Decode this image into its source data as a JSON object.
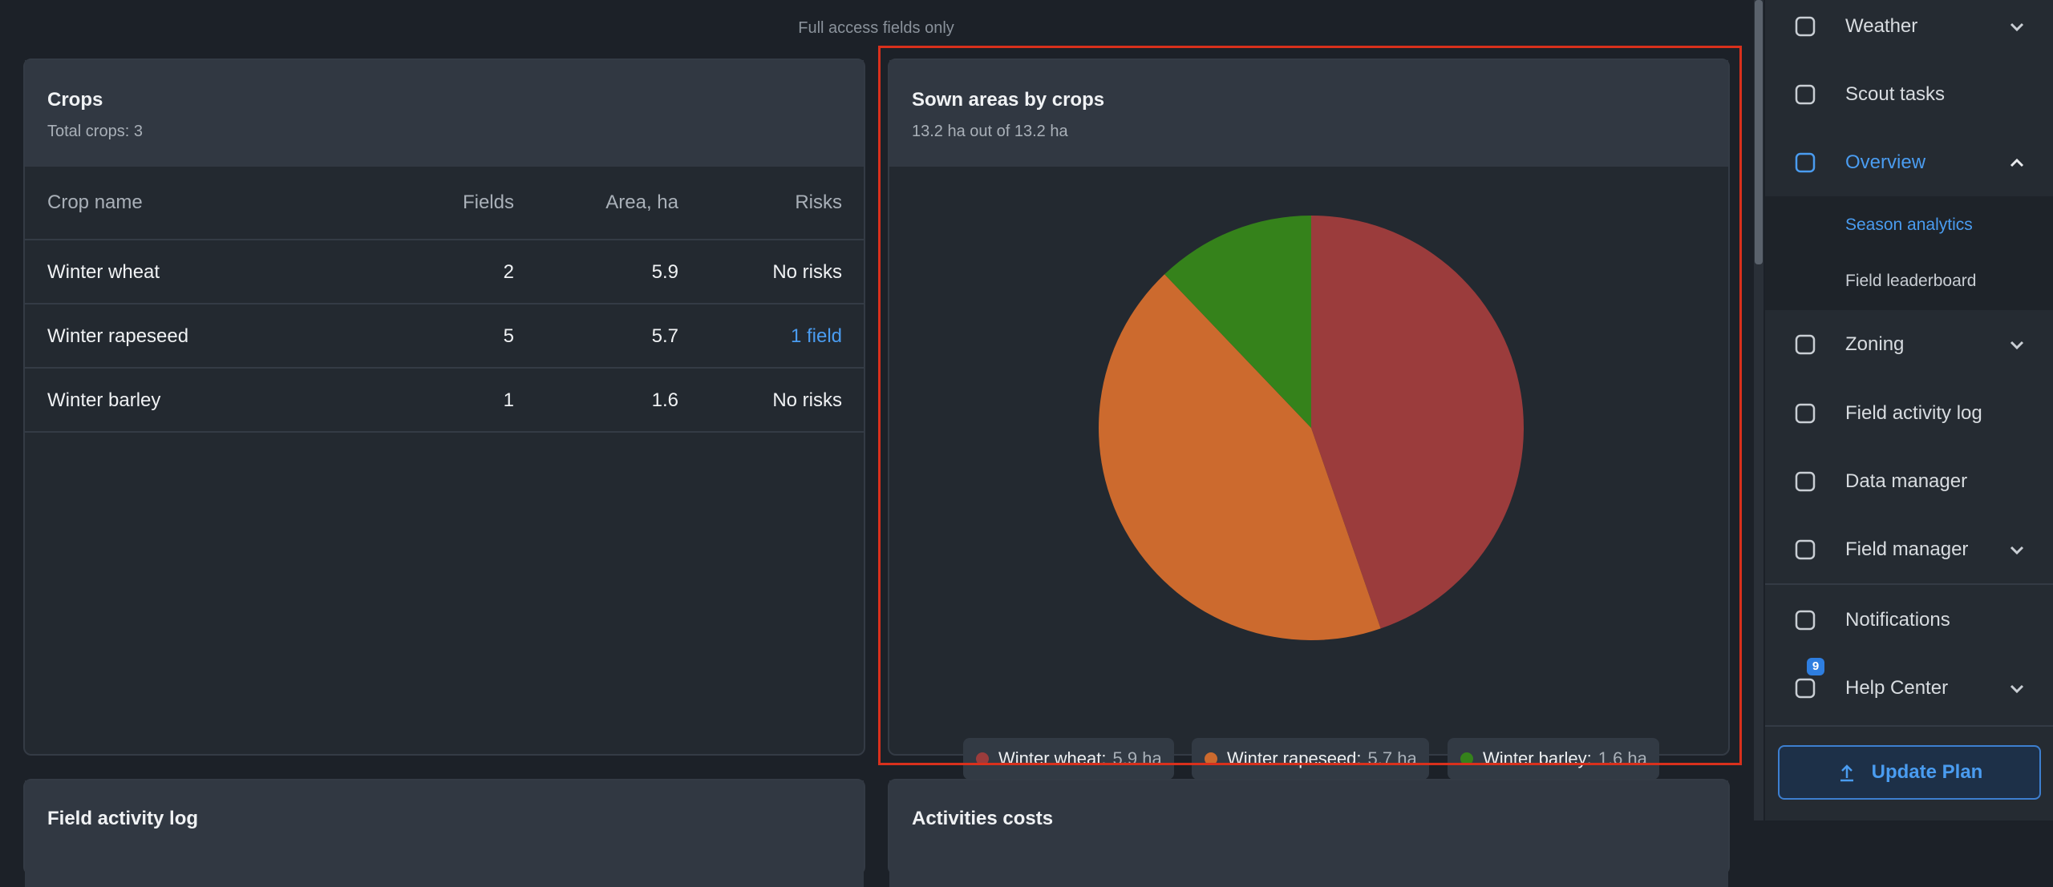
{
  "banner": "Full access fields only",
  "crops": {
    "title": "Crops",
    "subtitle": "Total crops: 3",
    "columns": [
      "Crop name",
      "Fields",
      "Area, ha",
      "Risks"
    ],
    "rows": [
      [
        "Winter wheat",
        "2",
        "5.9",
        "No risks"
      ],
      [
        "Winter rapeseed",
        "5",
        "5.7",
        "1 field"
      ],
      [
        "Winter barley",
        "1",
        "1.6",
        "No risks"
      ]
    ]
  },
  "chart_data": {
    "type": "pie",
    "title": "Sown areas by crops",
    "subtitle": "13.2 ha out of 13.2 ha",
    "categories": [
      "Winter wheat",
      "Winter rapeseed",
      "Winter barley"
    ],
    "values": [
      5.9,
      5.7,
      1.6
    ],
    "value_labels": [
      "5.9 ha",
      "5.7 ha",
      "1.6 ha"
    ],
    "colors": [
      "#9b3c3c",
      "#cc6a2e",
      "#35821b"
    ]
  },
  "bottom_cards": [
    "Field activity log",
    "Activities costs"
  ],
  "sidebar": {
    "items": [
      {
        "label": "Weather",
        "chevron": "down"
      },
      {
        "label": "Scout tasks"
      },
      {
        "label": "Overview",
        "chevron": "up",
        "active": true,
        "children": [
          "Season analytics",
          "Field leaderboard"
        ]
      },
      {
        "label": "Zoning",
        "chevron": "down"
      },
      {
        "label": "Field activity log"
      },
      {
        "label": "Data manager"
      },
      {
        "label": "Field manager",
        "chevron": "down"
      },
      {
        "label": "Notifications"
      },
      {
        "label": "Help Center",
        "chevron": "down",
        "badge": "9"
      }
    ],
    "button": "Update Plan"
  }
}
